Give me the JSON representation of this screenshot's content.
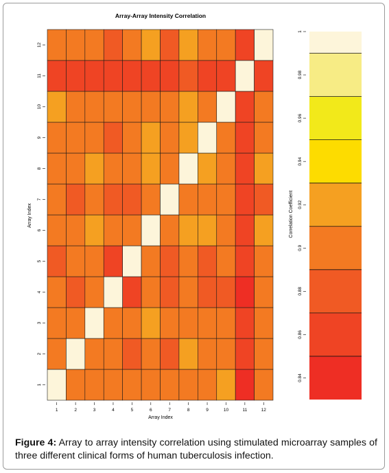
{
  "chart_data": {
    "type": "heatmap",
    "title": "Array-Array Intensity Correlation",
    "xlabel": "Array Index",
    "ylabel": "Array Index",
    "x_ticks": [
      "1",
      "2",
      "3",
      "4",
      "5",
      "6",
      "7",
      "8",
      "9",
      "10",
      "11",
      "12"
    ],
    "y_ticks": [
      "1",
      "2",
      "3",
      "4",
      "5",
      "6",
      "7",
      "8",
      "9",
      "10",
      "11",
      "12"
    ],
    "colorbar": {
      "label": "Correlation Coefficient",
      "range": [
        0.83,
        1.0
      ],
      "ticks": [
        0.84,
        0.86,
        0.88,
        0.9,
        0.92,
        0.94,
        0.96,
        0.98,
        1
      ],
      "tick_labels": [
        "0.84",
        "0.86",
        "0.88",
        "0.9",
        "0.92",
        "0.94",
        "0.96",
        "0.98",
        "1"
      ],
      "bins": [
        {
          "from": 0.83,
          "to": 0.85,
          "color": "#ee2e24"
        },
        {
          "from": 0.85,
          "to": 0.87,
          "color": "#ef4424"
        },
        {
          "from": 0.87,
          "to": 0.89,
          "color": "#f05a24"
        },
        {
          "from": 0.89,
          "to": 0.91,
          "color": "#f37a22"
        },
        {
          "from": 0.91,
          "to": 0.93,
          "color": "#f5a021"
        },
        {
          "from": 0.93,
          "to": 0.95,
          "color": "#fddc00"
        },
        {
          "from": 0.95,
          "to": 0.97,
          "color": "#f2e91a"
        },
        {
          "from": 0.97,
          "to": 0.99,
          "color": "#f7ec85"
        },
        {
          "from": 0.99,
          "to": 1.0,
          "color": "#fdf5da"
        }
      ]
    },
    "matrix_rows_index_1_to_12": [
      [
        1.0,
        0.89,
        0.9,
        0.89,
        0.9,
        0.9,
        0.9,
        0.9,
        0.9,
        0.91,
        0.84,
        0.9
      ],
      [
        0.89,
        1.0,
        0.9,
        0.89,
        0.88,
        0.9,
        0.88,
        0.91,
        0.89,
        0.9,
        0.86,
        0.9
      ],
      [
        0.9,
        0.9,
        1.0,
        0.9,
        0.9,
        0.91,
        0.9,
        0.9,
        0.89,
        0.9,
        0.86,
        0.9
      ],
      [
        0.89,
        0.88,
        0.9,
        1.0,
        0.86,
        0.89,
        0.88,
        0.89,
        0.88,
        0.88,
        0.84,
        0.9
      ],
      [
        0.88,
        0.89,
        0.89,
        0.86,
        1.0,
        0.9,
        0.88,
        0.89,
        0.88,
        0.89,
        0.86,
        0.89
      ],
      [
        0.9,
        0.89,
        0.91,
        0.89,
        0.9,
        1.0,
        0.89,
        0.92,
        0.91,
        0.9,
        0.86,
        0.91
      ],
      [
        0.9,
        0.87,
        0.89,
        0.88,
        0.88,
        0.89,
        1.0,
        0.9,
        0.9,
        0.9,
        0.85,
        0.88
      ],
      [
        0.9,
        0.9,
        0.91,
        0.9,
        0.9,
        0.92,
        0.9,
        1.0,
        0.91,
        0.9,
        0.86,
        0.91
      ],
      [
        0.9,
        0.89,
        0.89,
        0.88,
        0.9,
        0.91,
        0.9,
        0.91,
        1.0,
        0.9,
        0.85,
        0.9
      ],
      [
        0.91,
        0.9,
        0.89,
        0.89,
        0.89,
        0.9,
        0.9,
        0.91,
        0.9,
        1.0,
        0.86,
        0.9
      ],
      [
        0.85,
        0.86,
        0.86,
        0.85,
        0.86,
        0.86,
        0.86,
        0.87,
        0.85,
        0.86,
        1.0,
        0.86
      ],
      [
        0.9,
        0.9,
        0.9,
        0.88,
        0.89,
        0.91,
        0.87,
        0.91,
        0.9,
        0.9,
        0.86,
        1.0
      ]
    ]
  },
  "caption": {
    "label": "Figure 4:",
    "text": " Array to array intensity correlation using stimulated microarray samples of three different clinical forms of human tuberculosis infection."
  }
}
